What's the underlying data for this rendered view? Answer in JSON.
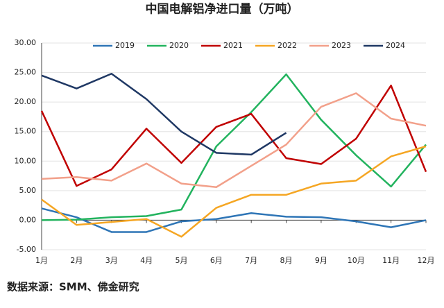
{
  "chart_data": {
    "type": "line",
    "title": "中国电解铝净进口量（万吨）",
    "source": "数据来源：SMM、佛金研究",
    "categories": [
      "1月",
      "2月",
      "3月",
      "4月",
      "5月",
      "6月",
      "7月",
      "8月",
      "9月",
      "10月",
      "11月",
      "12月"
    ],
    "ylim": [
      -5,
      30
    ],
    "yticks": [
      {
        "value": -5,
        "label": "-5.00"
      },
      {
        "value": 0,
        "label": "0.00"
      },
      {
        "value": 5,
        "label": "5.00"
      },
      {
        "value": 10,
        "label": "10.00"
      },
      {
        "value": 15,
        "label": "15.00"
      },
      {
        "value": 20,
        "label": "20.00"
      },
      {
        "value": 25,
        "label": "25.00"
      },
      {
        "value": 30,
        "label": "30.00"
      }
    ],
    "grid": true,
    "legend": "top",
    "series": [
      {
        "name": "2019",
        "color": "#2e75b6",
        "values": [
          2.0,
          0.5,
          -2.0,
          -2.0,
          -0.2,
          0.2,
          1.2,
          0.6,
          0.5,
          -0.2,
          -1.2,
          0.0
        ]
      },
      {
        "name": "2020",
        "color": "#22b35e",
        "values": [
          0.0,
          0.1,
          0.5,
          0.7,
          1.8,
          12.5,
          18.3,
          24.7,
          17.0,
          11.0,
          5.7,
          12.8
        ]
      },
      {
        "name": "2021",
        "color": "#c00000",
        "values": [
          18.5,
          5.8,
          8.6,
          15.5,
          9.7,
          15.8,
          18.0,
          10.5,
          9.5,
          13.8,
          22.8,
          8.2
        ]
      },
      {
        "name": "2022",
        "color": "#f5a623",
        "values": [
          3.5,
          -0.8,
          -0.3,
          0.2,
          -2.8,
          2.1,
          4.3,
          4.3,
          6.2,
          6.7,
          10.8,
          12.5
        ]
      },
      {
        "name": "2023",
        "color": "#f2a08a",
        "values": [
          7.0,
          7.3,
          6.7,
          9.6,
          6.2,
          5.6,
          9.2,
          12.8,
          19.2,
          21.5,
          17.2,
          16.0
        ]
      },
      {
        "name": "2024",
        "color": "#1f3864",
        "values": [
          24.5,
          22.3,
          24.8,
          20.5,
          15.0,
          11.4,
          11.1,
          14.8,
          null,
          null,
          null,
          null
        ]
      }
    ]
  }
}
